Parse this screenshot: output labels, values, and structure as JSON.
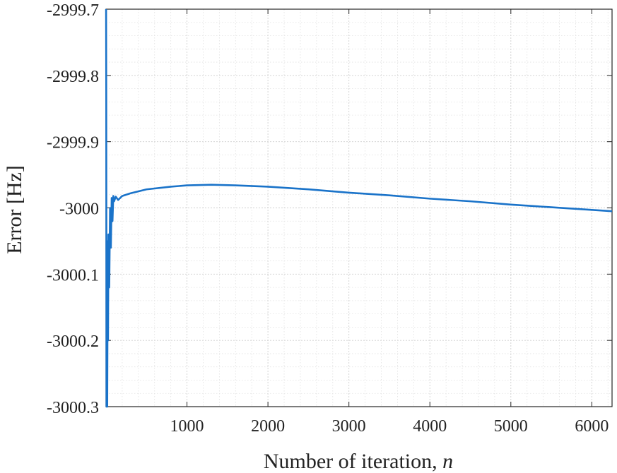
{
  "chart_data": {
    "type": "line",
    "title": "",
    "xlabel": "Number of iteration, ",
    "xlabel_var": "n",
    "ylabel": "Error [Hz]",
    "xlim": [
      0,
      6250
    ],
    "ylim": [
      -3000.3,
      -2999.7
    ],
    "x_ticks": [
      1000,
      2000,
      3000,
      4000,
      5000,
      6000
    ],
    "x_tick_labels": [
      "1000",
      "2000",
      "3000",
      "4000",
      "5000",
      "6000"
    ],
    "y_ticks": [
      -2999.7,
      -2999.8,
      -2999.9,
      -3000,
      -3000.1,
      -3000.2,
      -3000.3
    ],
    "y_tick_labels": [
      "-2999.7",
      "-2999.8",
      "-2999.9",
      "-3000",
      "-3000.1",
      "-3000.2",
      "-3000.3"
    ],
    "grid": "major and minor (dotted)",
    "line_color": "#1a73c9",
    "series": [
      {
        "x": [
          1,
          3,
          6,
          10,
          15,
          20,
          25,
          30,
          40,
          50,
          60,
          70,
          80,
          90,
          100,
          120,
          150,
          200,
          300,
          500,
          800,
          1000,
          1300,
          1600,
          2000,
          2500,
          3000,
          3500,
          4000,
          4500,
          5000,
          5500,
          6000,
          6250
        ],
        "y": [
          -2999.7,
          -2999.83,
          -3000.3,
          -3000.05,
          -3000.3,
          -3000.1,
          -3000.2,
          -3000.04,
          -3000.12,
          -3000.0,
          -3000.06,
          -2999.985,
          -3000.02,
          -2999.982,
          -2999.99,
          -2999.983,
          -2999.988,
          -2999.982,
          -2999.978,
          -2999.972,
          -2999.968,
          -2999.966,
          -2999.965,
          -2999.966,
          -2999.968,
          -2999.972,
          -2999.977,
          -2999.981,
          -2999.986,
          -2999.99,
          -2999.995,
          -2999.999,
          -3000.003,
          -3000.005
        ]
      }
    ]
  }
}
